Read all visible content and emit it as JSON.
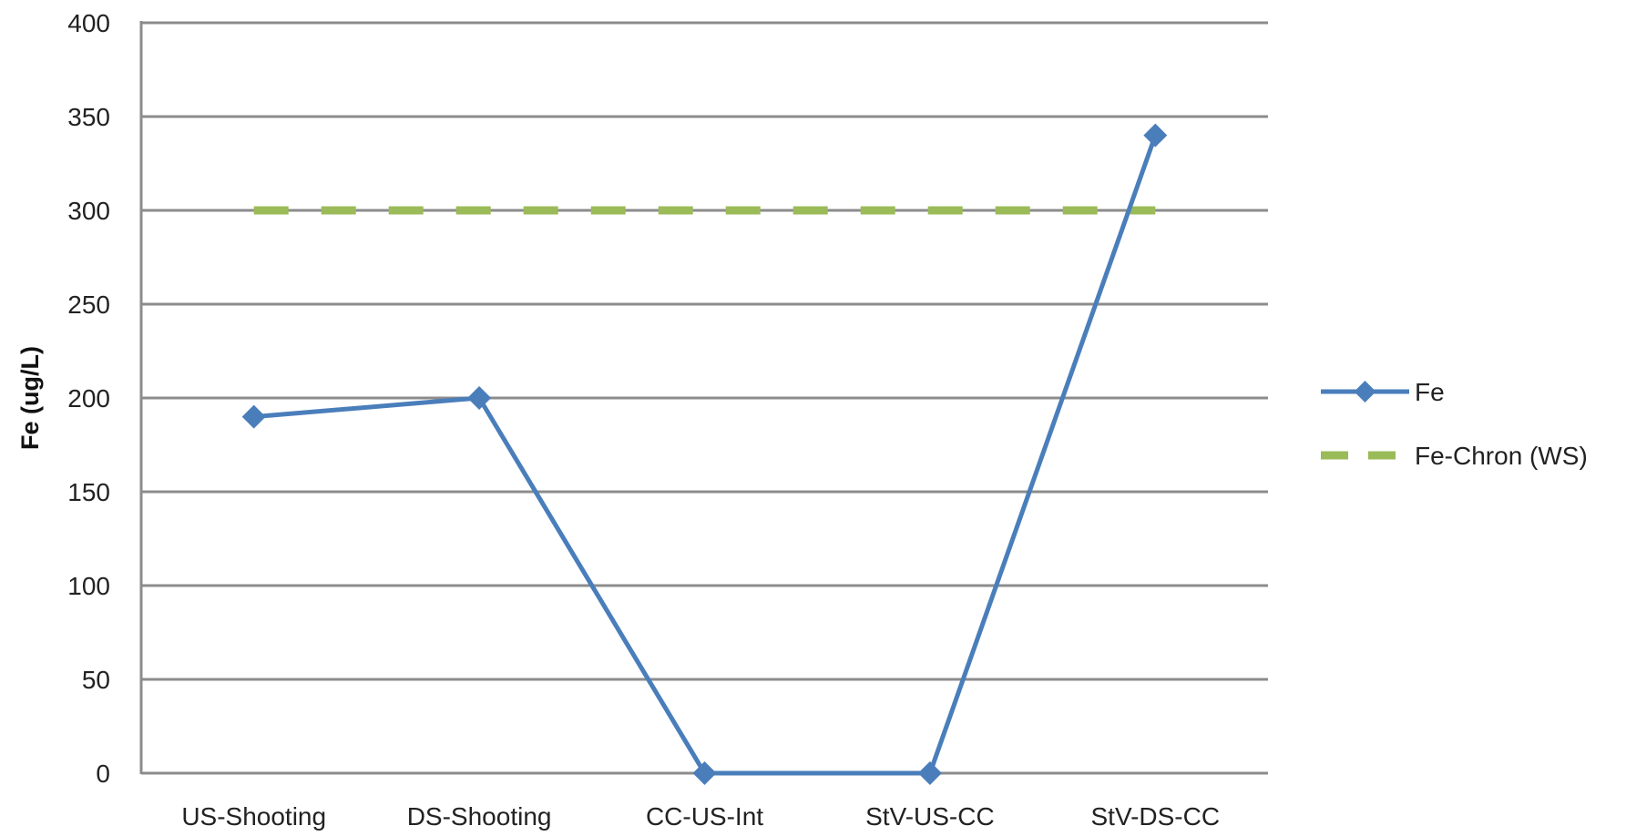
{
  "chart_data": {
    "type": "line",
    "title": "",
    "xlabel": "",
    "ylabel": "Fe (ug/L)",
    "categories": [
      "US-Shooting",
      "DS-Shooting",
      "CC-US-Int",
      "StV-US-CC",
      "StV-DS-CC"
    ],
    "ylim": [
      0,
      400
    ],
    "yticks": [
      0,
      50,
      100,
      150,
      200,
      250,
      300,
      350,
      400
    ],
    "grid": "horizontal",
    "legend_position": "right",
    "series": [
      {
        "name": "Fe",
        "values": [
          190,
          200,
          0,
          0,
          340
        ],
        "color": "#4a7ebb",
        "style": "solid",
        "marker": "diamond"
      },
      {
        "name": "Fe-Chron (WS)",
        "values": [
          300,
          300,
          300,
          300,
          300
        ],
        "color": "#9bbb59",
        "style": "dashed",
        "marker": "none"
      }
    ]
  }
}
